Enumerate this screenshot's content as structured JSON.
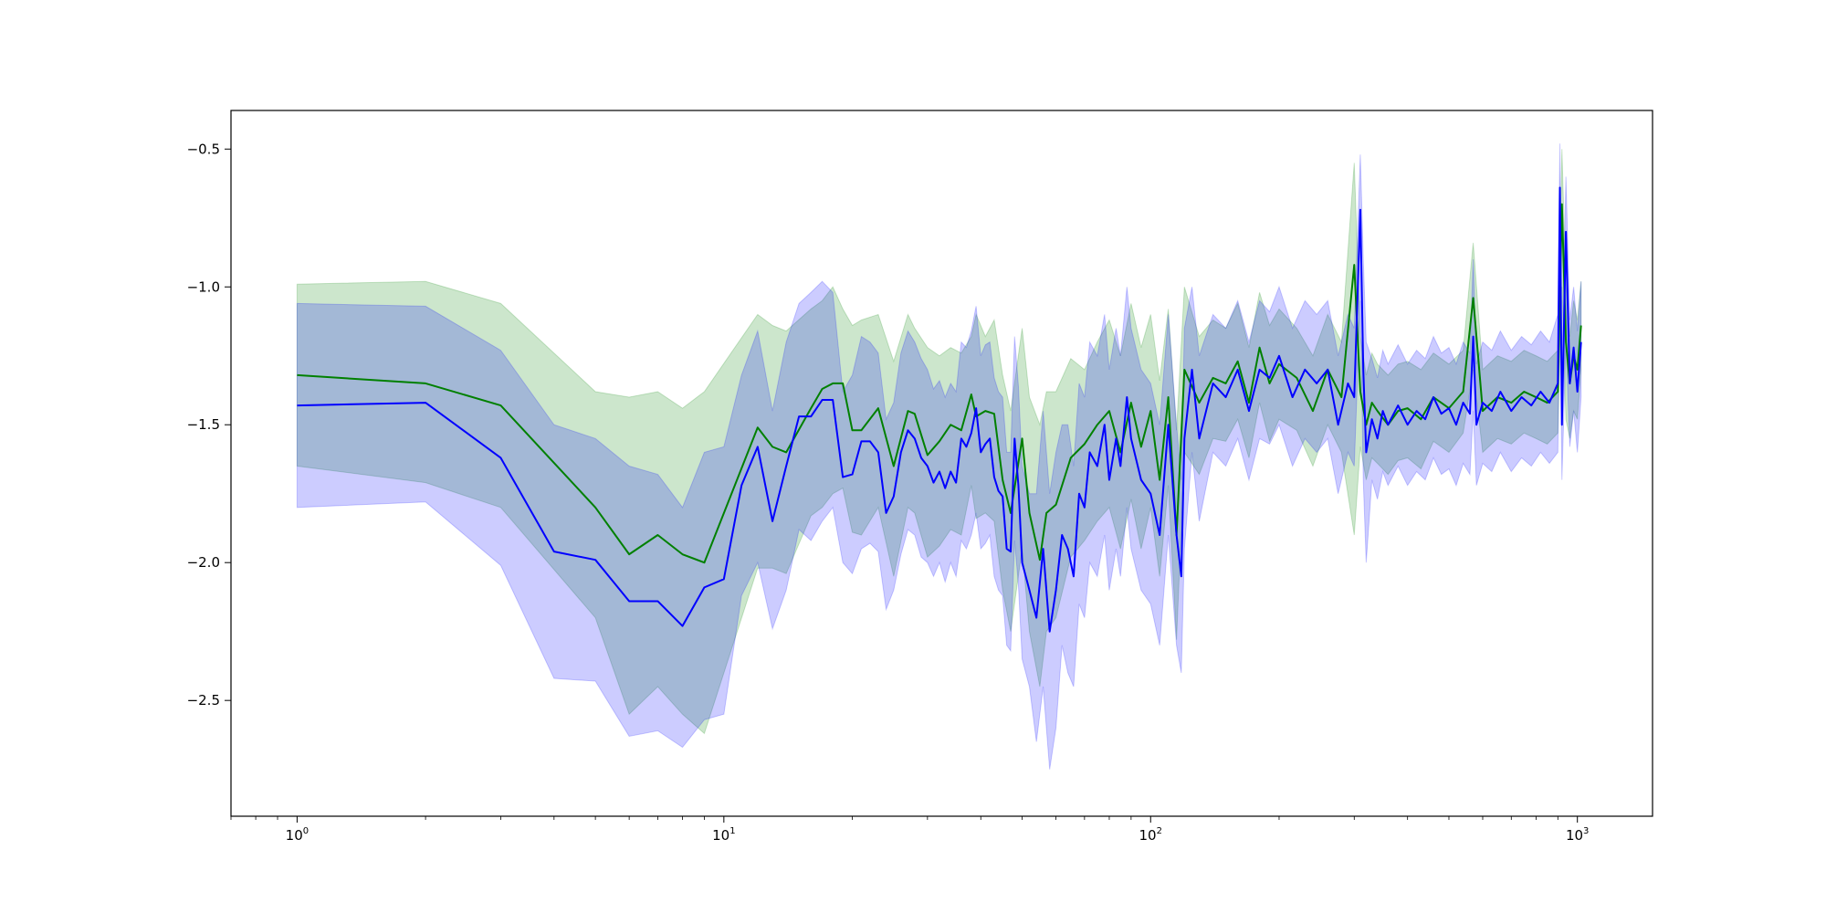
{
  "chart_data": {
    "type": "line",
    "title": "",
    "xlabel": "",
    "ylabel": "",
    "x_scale": "log",
    "xlim": [
      0.7,
      1500
    ],
    "ylim": [
      -2.92,
      -0.36
    ],
    "grid": false,
    "legend": "none",
    "x_ticks": [
      {
        "base": "10",
        "exp": "0",
        "value": 1
      },
      {
        "base": "10",
        "exp": "1",
        "value": 10
      },
      {
        "base": "10",
        "exp": "2",
        "value": 100
      },
      {
        "base": "10",
        "exp": "3",
        "value": 1000
      }
    ],
    "y_ticks": [
      {
        "label": "−0.5",
        "value": -0.5
      },
      {
        "label": "−1.0",
        "value": -1.0
      },
      {
        "label": "−1.5",
        "value": -1.5
      },
      {
        "label": "−2.0",
        "value": -2.0
      },
      {
        "label": "−2.5",
        "value": -2.5
      }
    ],
    "series": [
      {
        "color": "#008000",
        "band_color": "#008000",
        "band_opacity": 0.2,
        "x": [
          1,
          2,
          3,
          5,
          6,
          7,
          8,
          9,
          12,
          13,
          14,
          16,
          17,
          18,
          19,
          20,
          21,
          23,
          25,
          27,
          28,
          30,
          32,
          34,
          36,
          38,
          39,
          41,
          43,
          45,
          47,
          50,
          52,
          55,
          57,
          60,
          65,
          70,
          75,
          80,
          85,
          90,
          95,
          100,
          105,
          110,
          115,
          120,
          130,
          140,
          150,
          160,
          170,
          180,
          190,
          200,
          220,
          240,
          260,
          280,
          300,
          310,
          320,
          330,
          340,
          360,
          380,
          400,
          430,
          460,
          500,
          540,
          570,
          600,
          650,
          700,
          750,
          800,
          850,
          900,
          920,
          940,
          960,
          980,
          1000,
          1020
        ],
        "y": [
          -1.32,
          -1.35,
          -1.43,
          -1.8,
          -1.97,
          -1.9,
          -1.97,
          -2.0,
          -1.51,
          -1.58,
          -1.6,
          -1.44,
          -1.37,
          -1.35,
          -1.35,
          -1.52,
          -1.52,
          -1.44,
          -1.65,
          -1.45,
          -1.46,
          -1.61,
          -1.56,
          -1.5,
          -1.52,
          -1.39,
          -1.47,
          -1.45,
          -1.46,
          -1.7,
          -1.82,
          -1.55,
          -1.82,
          -1.99,
          -1.82,
          -1.79,
          -1.62,
          -1.57,
          -1.5,
          -1.45,
          -1.6,
          -1.42,
          -1.58,
          -1.45,
          -1.7,
          -1.4,
          -1.9,
          -1.3,
          -1.42,
          -1.33,
          -1.35,
          -1.27,
          -1.42,
          -1.22,
          -1.35,
          -1.28,
          -1.33,
          -1.45,
          -1.3,
          -1.4,
          -0.92,
          -1.38,
          -1.5,
          -1.42,
          -1.45,
          -1.5,
          -1.45,
          -1.44,
          -1.48,
          -1.4,
          -1.44,
          -1.38,
          -1.04,
          -1.45,
          -1.4,
          -1.42,
          -1.38,
          -1.4,
          -1.42,
          -1.38,
          -0.7,
          -1.2,
          -1.35,
          -1.25,
          -1.3,
          -1.14
        ],
        "lower": [
          -1.65,
          -1.71,
          -1.8,
          -2.2,
          -2.55,
          -2.45,
          -2.55,
          -2.62,
          -2.02,
          -2.02,
          -2.04,
          -1.83,
          -1.8,
          -1.75,
          -1.73,
          -1.89,
          -1.9,
          -1.8,
          -2.05,
          -1.8,
          -1.82,
          -1.98,
          -1.94,
          -1.88,
          -1.9,
          -1.72,
          -1.84,
          -1.82,
          -1.85,
          -2.1,
          -2.25,
          -1.95,
          -2.25,
          -2.45,
          -2.25,
          -2.2,
          -1.98,
          -1.92,
          -1.85,
          -1.8,
          -1.95,
          -1.77,
          -1.95,
          -1.8,
          -2.05,
          -1.72,
          -2.28,
          -1.6,
          -1.68,
          -1.55,
          -1.56,
          -1.48,
          -1.62,
          -1.42,
          -1.56,
          -1.48,
          -1.52,
          -1.65,
          -1.5,
          -1.6,
          -1.9,
          -1.58,
          -1.7,
          -1.62,
          -1.64,
          -1.68,
          -1.63,
          -1.62,
          -1.66,
          -1.56,
          -1.6,
          -1.53,
          -1.3,
          -1.6,
          -1.55,
          -1.57,
          -1.53,
          -1.55,
          -1.57,
          -1.53,
          -1.0,
          -1.48,
          -1.55,
          -1.45,
          -1.48,
          -1.3
        ],
        "upper": [
          -0.99,
          -0.98,
          -1.06,
          -1.38,
          -1.4,
          -1.38,
          -1.44,
          -1.38,
          -1.1,
          -1.14,
          -1.16,
          -1.08,
          -1.05,
          -1.0,
          -1.08,
          -1.14,
          -1.12,
          -1.1,
          -1.27,
          -1.1,
          -1.15,
          -1.22,
          -1.25,
          -1.22,
          -1.24,
          -1.18,
          -1.1,
          -1.18,
          -1.12,
          -1.32,
          -1.45,
          -1.15,
          -1.4,
          -1.5,
          -1.38,
          -1.38,
          -1.26,
          -1.3,
          -1.2,
          -1.12,
          -1.25,
          -1.06,
          -1.22,
          -1.1,
          -1.34,
          -1.08,
          -1.52,
          -1.0,
          -1.18,
          -1.12,
          -1.15,
          -1.06,
          -1.22,
          -1.02,
          -1.14,
          -1.08,
          -1.15,
          -1.25,
          -1.1,
          -1.2,
          -0.55,
          -1.18,
          -1.32,
          -1.24,
          -1.28,
          -1.32,
          -1.28,
          -1.27,
          -1.3,
          -1.24,
          -1.28,
          -1.23,
          -0.84,
          -1.3,
          -1.25,
          -1.27,
          -1.23,
          -1.25,
          -1.27,
          -1.23,
          -0.5,
          -1.0,
          -1.18,
          -1.05,
          -1.12,
          -0.98
        ]
      },
      {
        "color": "#0000ff",
        "band_color": "#0000ff",
        "band_opacity": 0.2,
        "x": [
          1,
          2,
          3,
          4,
          5,
          6,
          7,
          8,
          9,
          10,
          11,
          12,
          13,
          14,
          15,
          16,
          17,
          18,
          19,
          20,
          21,
          22,
          23,
          24,
          25,
          26,
          27,
          28,
          29,
          30,
          31,
          32,
          33,
          34,
          35,
          36,
          37,
          38,
          39,
          40,
          41,
          42,
          43,
          44,
          45,
          46,
          47,
          48,
          49,
          50,
          52,
          54,
          56,
          58,
          60,
          62,
          64,
          66,
          68,
          70,
          72,
          75,
          78,
          80,
          83,
          85,
          88,
          90,
          95,
          100,
          105,
          110,
          115,
          118,
          120,
          125,
          130,
          140,
          150,
          160,
          170,
          180,
          190,
          200,
          215,
          230,
          245,
          260,
          275,
          290,
          300,
          310,
          315,
          320,
          330,
          340,
          350,
          360,
          380,
          400,
          420,
          440,
          460,
          480,
          500,
          520,
          540,
          560,
          570,
          580,
          600,
          630,
          660,
          700,
          740,
          780,
          820,
          860,
          900,
          910,
          920,
          940,
          960,
          980,
          1000,
          1020
        ],
        "y": [
          -1.43,
          -1.42,
          -1.62,
          -1.96,
          -1.99,
          -2.14,
          -2.14,
          -2.23,
          -2.09,
          -2.06,
          -1.72,
          -1.58,
          -1.85,
          -1.65,
          -1.47,
          -1.47,
          -1.41,
          -1.41,
          -1.69,
          -1.68,
          -1.56,
          -1.56,
          -1.6,
          -1.82,
          -1.76,
          -1.6,
          -1.52,
          -1.55,
          -1.62,
          -1.65,
          -1.71,
          -1.67,
          -1.73,
          -1.67,
          -1.71,
          -1.55,
          -1.58,
          -1.53,
          -1.44,
          -1.6,
          -1.57,
          -1.55,
          -1.69,
          -1.74,
          -1.76,
          -1.95,
          -1.96,
          -1.55,
          -1.72,
          -2.0,
          -2.1,
          -2.2,
          -1.95,
          -2.25,
          -2.1,
          -1.9,
          -1.95,
          -2.05,
          -1.75,
          -1.8,
          -1.6,
          -1.65,
          -1.5,
          -1.7,
          -1.55,
          -1.65,
          -1.4,
          -1.55,
          -1.7,
          -1.75,
          -1.9,
          -1.5,
          -1.9,
          -2.05,
          -1.55,
          -1.3,
          -1.55,
          -1.35,
          -1.4,
          -1.3,
          -1.45,
          -1.3,
          -1.33,
          -1.25,
          -1.4,
          -1.3,
          -1.35,
          -1.3,
          -1.5,
          -1.35,
          -1.4,
          -0.72,
          -1.3,
          -1.6,
          -1.48,
          -1.55,
          -1.45,
          -1.5,
          -1.43,
          -1.5,
          -1.45,
          -1.48,
          -1.4,
          -1.46,
          -1.44,
          -1.5,
          -1.42,
          -1.46,
          -1.18,
          -1.5,
          -1.42,
          -1.45,
          -1.38,
          -1.45,
          -1.4,
          -1.43,
          -1.38,
          -1.42,
          -1.35,
          -0.64,
          -1.5,
          -0.8,
          -1.35,
          -1.22,
          -1.38,
          -1.2
        ],
        "lower": [
          -1.8,
          -1.78,
          -2.01,
          -2.42,
          -2.43,
          -2.63,
          -2.61,
          -2.67,
          -2.57,
          -2.55,
          -2.12,
          -2.0,
          -2.24,
          -2.1,
          -1.88,
          -1.92,
          -1.85,
          -1.8,
          -2.0,
          -2.04,
          -1.95,
          -1.93,
          -1.96,
          -2.17,
          -2.1,
          -1.97,
          -1.88,
          -1.9,
          -1.98,
          -2.0,
          -2.05,
          -2.0,
          -2.07,
          -2.0,
          -2.05,
          -1.92,
          -1.95,
          -1.9,
          -1.82,
          -1.95,
          -1.93,
          -1.9,
          -2.05,
          -2.1,
          -2.12,
          -2.3,
          -2.32,
          -1.92,
          -2.08,
          -2.35,
          -2.45,
          -2.65,
          -2.45,
          -2.75,
          -2.6,
          -2.3,
          -2.4,
          -2.45,
          -2.15,
          -2.2,
          -2.0,
          -2.05,
          -1.9,
          -2.1,
          -1.95,
          -2.05,
          -1.8,
          -1.95,
          -2.1,
          -2.15,
          -2.3,
          -1.9,
          -2.3,
          -2.4,
          -1.95,
          -1.6,
          -1.85,
          -1.6,
          -1.65,
          -1.55,
          -1.7,
          -1.55,
          -1.57,
          -1.5,
          -1.65,
          -1.55,
          -1.6,
          -1.55,
          -1.75,
          -1.6,
          -1.65,
          -1.05,
          -1.7,
          -2.0,
          -1.7,
          -1.77,
          -1.67,
          -1.72,
          -1.65,
          -1.72,
          -1.67,
          -1.7,
          -1.62,
          -1.68,
          -1.66,
          -1.72,
          -1.64,
          -1.68,
          -1.45,
          -1.72,
          -1.64,
          -1.67,
          -1.6,
          -1.67,
          -1.62,
          -1.65,
          -1.6,
          -1.64,
          -1.6,
          -1.0,
          -1.7,
          -1.2,
          -1.58,
          -1.45,
          -1.6,
          -1.4
        ],
        "upper": [
          -1.06,
          -1.07,
          -1.23,
          -1.5,
          -1.55,
          -1.65,
          -1.68,
          -1.8,
          -1.6,
          -1.58,
          -1.32,
          -1.16,
          -1.45,
          -1.2,
          -1.06,
          -1.02,
          -0.98,
          -1.02,
          -1.38,
          -1.32,
          -1.18,
          -1.2,
          -1.24,
          -1.48,
          -1.42,
          -1.24,
          -1.16,
          -1.2,
          -1.26,
          -1.3,
          -1.37,
          -1.34,
          -1.4,
          -1.35,
          -1.38,
          -1.2,
          -1.22,
          -1.16,
          -1.07,
          -1.25,
          -1.21,
          -1.2,
          -1.33,
          -1.38,
          -1.4,
          -1.6,
          -1.6,
          -1.18,
          -1.36,
          -1.65,
          -1.75,
          -1.75,
          -1.45,
          -1.75,
          -1.6,
          -1.5,
          -1.5,
          -1.65,
          -1.35,
          -1.4,
          -1.2,
          -1.25,
          -1.1,
          -1.3,
          -1.15,
          -1.25,
          -1.0,
          -1.15,
          -1.3,
          -1.35,
          -1.5,
          -1.1,
          -1.5,
          -1.7,
          -1.15,
          -1.0,
          -1.25,
          -1.1,
          -1.15,
          -1.05,
          -1.2,
          -1.05,
          -1.09,
          -1.0,
          -1.15,
          -1.05,
          -1.1,
          -1.05,
          -1.25,
          -1.1,
          -1.15,
          -0.52,
          -0.9,
          -1.2,
          -1.26,
          -1.33,
          -1.23,
          -1.28,
          -1.21,
          -1.28,
          -1.23,
          -1.26,
          -1.18,
          -1.24,
          -1.22,
          -1.28,
          -1.2,
          -1.24,
          -0.9,
          -1.28,
          -1.2,
          -1.23,
          -1.16,
          -1.23,
          -1.18,
          -1.21,
          -1.16,
          -1.2,
          -1.1,
          -0.48,
          -1.3,
          -0.6,
          -1.12,
          -1.0,
          -1.16,
          -0.98
        ]
      }
    ]
  }
}
